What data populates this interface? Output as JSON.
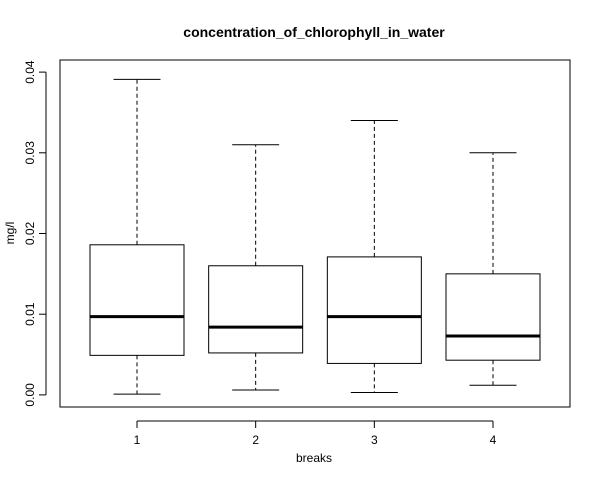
{
  "chart_data": {
    "type": "boxplot",
    "title": "concentration_of_chlorophyll_in_water",
    "xlabel": "breaks",
    "ylabel": "mg/l",
    "ylim": [
      -0.0015,
      0.0415
    ],
    "yticks": [
      "0.00",
      "0.01",
      "0.02",
      "0.03",
      "0.04"
    ],
    "categories": [
      "1",
      "2",
      "3",
      "4"
    ],
    "boxes": [
      {
        "category": "1",
        "min": 0.0001,
        "q1": 0.0049,
        "median": 0.0097,
        "q3": 0.0186,
        "max": 0.0391
      },
      {
        "category": "2",
        "min": 0.0006,
        "q1": 0.0052,
        "median": 0.0084,
        "q3": 0.016,
        "max": 0.031
      },
      {
        "category": "3",
        "min": 0.0003,
        "q1": 0.0039,
        "median": 0.0097,
        "q3": 0.0171,
        "max": 0.034
      },
      {
        "category": "4",
        "min": 0.0012,
        "q1": 0.0043,
        "median": 0.0073,
        "q3": 0.015,
        "max": 0.03
      }
    ],
    "grid": false,
    "legend": "none"
  }
}
